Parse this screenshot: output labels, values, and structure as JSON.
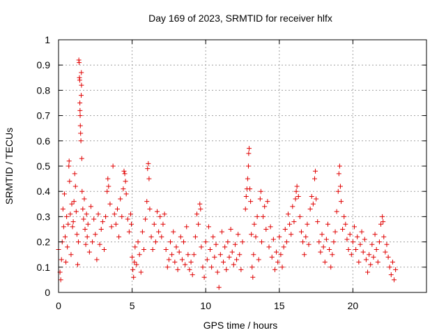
{
  "chart_data": {
    "type": "scatter",
    "title": "Day 169 of 2023, SRMTID for receiver hlfx",
    "xlabel": "GPS time / hours",
    "ylabel": "SRMTID / TECUs",
    "xlim": [
      0,
      25
    ],
    "ylim": [
      0,
      1
    ],
    "xticks": [
      0,
      5,
      10,
      15,
      20
    ],
    "xtick_labels": [
      "0",
      "5",
      "10",
      "15",
      "20"
    ],
    "yticks": [
      0,
      0.1,
      0.2,
      0.3,
      0.4,
      0.5,
      0.6,
      0.7,
      0.8,
      0.9,
      1
    ],
    "ytick_labels": [
      "0",
      "0.1",
      "0.2",
      "0.3",
      "0.4",
      "0.5",
      "0.6",
      "0.7",
      "0.8",
      "0.9",
      "1"
    ],
    "grid": true,
    "marker": "+",
    "color": "#e00000",
    "series": [
      {
        "name": "SRMTID",
        "points": [
          [
            0.0,
            0.17
          ],
          [
            0.1,
            0.08
          ],
          [
            0.15,
            0.05
          ],
          [
            0.2,
            0.13
          ],
          [
            0.25,
            0.2
          ],
          [
            0.3,
            0.33
          ],
          [
            0.35,
            0.26
          ],
          [
            0.4,
            0.39
          ],
          [
            0.45,
            0.22
          ],
          [
            0.5,
            0.12
          ],
          [
            0.55,
            0.3
          ],
          [
            0.6,
            0.18
          ],
          [
            0.65,
            0.27
          ],
          [
            0.7,
            0.5
          ],
          [
            0.72,
            0.52
          ],
          [
            0.75,
            0.44
          ],
          [
            0.8,
            0.31
          ],
          [
            0.85,
            0.15
          ],
          [
            0.9,
            0.35
          ],
          [
            0.95,
            0.26
          ],
          [
            1.0,
            0.28
          ],
          [
            1.05,
            0.36
          ],
          [
            1.1,
            0.47
          ],
          [
            1.15,
            0.42
          ],
          [
            1.2,
            0.32
          ],
          [
            1.25,
            0.23
          ],
          [
            1.3,
            0.11
          ],
          [
            1.35,
            0.2
          ],
          [
            1.38,
            0.92
          ],
          [
            1.4,
            0.91
          ],
          [
            1.42,
            0.85
          ],
          [
            1.44,
            0.84
          ],
          [
            1.45,
            0.75
          ],
          [
            1.46,
            0.72
          ],
          [
            1.47,
            0.7
          ],
          [
            1.48,
            0.66
          ],
          [
            1.5,
            0.63
          ],
          [
            1.52,
            0.6
          ],
          [
            1.54,
            0.78
          ],
          [
            1.55,
            0.87
          ],
          [
            1.56,
            0.82
          ],
          [
            1.58,
            0.53
          ],
          [
            1.6,
            0.4
          ],
          [
            1.65,
            0.33
          ],
          [
            1.7,
            0.29
          ],
          [
            1.75,
            0.37
          ],
          [
            1.8,
            0.25
          ],
          [
            1.85,
            0.19
          ],
          [
            1.9,
            0.31
          ],
          [
            1.95,
            0.22
          ],
          [
            2.0,
            0.27
          ],
          [
            2.1,
            0.16
          ],
          [
            2.2,
            0.34
          ],
          [
            2.3,
            0.2
          ],
          [
            2.4,
            0.29
          ],
          [
            2.5,
            0.23
          ],
          [
            2.6,
            0.13
          ],
          [
            2.7,
            0.31
          ],
          [
            2.8,
            0.19
          ],
          [
            2.9,
            0.25
          ],
          [
            3.0,
            0.28
          ],
          [
            3.1,
            0.17
          ],
          [
            3.2,
            0.3
          ],
          [
            3.3,
            0.4
          ],
          [
            3.35,
            0.45
          ],
          [
            3.4,
            0.42
          ],
          [
            3.5,
            0.35
          ],
          [
            3.6,
            0.26
          ],
          [
            3.7,
            0.5
          ],
          [
            3.8,
            0.31
          ],
          [
            3.9,
            0.27
          ],
          [
            4.0,
            0.33
          ],
          [
            4.1,
            0.22
          ],
          [
            4.2,
            0.37
          ],
          [
            4.3,
            0.3
          ],
          [
            4.4,
            0.41
          ],
          [
            4.45,
            0.48
          ],
          [
            4.5,
            0.47
          ],
          [
            4.55,
            0.44
          ],
          [
            4.6,
            0.39
          ],
          [
            4.7,
            0.29
          ],
          [
            4.8,
            0.24
          ],
          [
            4.9,
            0.31
          ],
          [
            4.95,
            0.27
          ],
          [
            5.0,
            0.14
          ],
          [
            5.05,
            0.09
          ],
          [
            5.1,
            0.06
          ],
          [
            5.15,
            0.12
          ],
          [
            5.2,
            0.18
          ],
          [
            5.3,
            0.11
          ],
          [
            5.4,
            0.2
          ],
          [
            5.5,
            0.15
          ],
          [
            5.6,
            0.08
          ],
          [
            5.7,
            0.24
          ],
          [
            5.8,
            0.17
          ],
          [
            5.9,
            0.29
          ],
          [
            6.0,
            0.36
          ],
          [
            6.05,
            0.49
          ],
          [
            6.1,
            0.51
          ],
          [
            6.15,
            0.45
          ],
          [
            6.2,
            0.33
          ],
          [
            6.3,
            0.22
          ],
          [
            6.4,
            0.17
          ],
          [
            6.5,
            0.27
          ],
          [
            6.6,
            0.2
          ],
          [
            6.7,
            0.32
          ],
          [
            6.8,
            0.24
          ],
          [
            6.9,
            0.3
          ],
          [
            7.0,
            0.22
          ],
          [
            7.1,
            0.27
          ],
          [
            7.2,
            0.31
          ],
          [
            7.3,
            0.17
          ],
          [
            7.4,
            0.1
          ],
          [
            7.5,
            0.13
          ],
          [
            7.6,
            0.2
          ],
          [
            7.7,
            0.15
          ],
          [
            7.8,
            0.24
          ],
          [
            7.9,
            0.12
          ],
          [
            8.0,
            0.18
          ],
          [
            8.1,
            0.09
          ],
          [
            8.2,
            0.16
          ],
          [
            8.3,
            0.22
          ],
          [
            8.4,
            0.13
          ],
          [
            8.5,
            0.2
          ],
          [
            8.6,
            0.11
          ],
          [
            8.7,
            0.26
          ],
          [
            8.8,
            0.15
          ],
          [
            8.9,
            0.09
          ],
          [
            9.0,
            0.12
          ],
          [
            9.1,
            0.07
          ],
          [
            9.2,
            0.15
          ],
          [
            9.3,
            0.22
          ],
          [
            9.4,
            0.31
          ],
          [
            9.5,
            0.27
          ],
          [
            9.6,
            0.35
          ],
          [
            9.65,
            0.33
          ],
          [
            9.7,
            0.18
          ],
          [
            9.8,
            0.1
          ],
          [
            9.9,
            0.06
          ],
          [
            10.0,
            0.2
          ],
          [
            10.1,
            0.13
          ],
          [
            10.2,
            0.26
          ],
          [
            10.3,
            0.17
          ],
          [
            10.4,
            0.1
          ],
          [
            10.5,
            0.22
          ],
          [
            10.6,
            0.14
          ],
          [
            10.7,
            0.19
          ],
          [
            10.8,
            0.08
          ],
          [
            10.9,
            0.02
          ],
          [
            11.0,
            0.15
          ],
          [
            11.1,
            0.24
          ],
          [
            11.2,
            0.12
          ],
          [
            11.3,
            0.18
          ],
          [
            11.4,
            0.09
          ],
          [
            11.5,
            0.2
          ],
          [
            11.6,
            0.14
          ],
          [
            11.7,
            0.25
          ],
          [
            11.8,
            0.16
          ],
          [
            11.9,
            0.11
          ],
          [
            12.0,
            0.19
          ],
          [
            12.1,
            0.13
          ],
          [
            12.2,
            0.23
          ],
          [
            12.3,
            0.15
          ],
          [
            12.4,
            0.09
          ],
          [
            12.5,
            0.2
          ],
          [
            12.7,
            0.33
          ],
          [
            12.75,
            0.38
          ],
          [
            12.8,
            0.41
          ],
          [
            12.85,
            0.45
          ],
          [
            12.9,
            0.5
          ],
          [
            12.92,
            0.55
          ],
          [
            12.95,
            0.57
          ],
          [
            13.0,
            0.41
          ],
          [
            13.05,
            0.36
          ],
          [
            13.1,
            0.23
          ],
          [
            13.15,
            0.1
          ],
          [
            13.2,
            0.06
          ],
          [
            13.25,
            0.15
          ],
          [
            13.3,
            0.27
          ],
          [
            13.4,
            0.22
          ],
          [
            13.5,
            0.3
          ],
          [
            13.6,
            0.13
          ],
          [
            13.7,
            0.37
          ],
          [
            13.75,
            0.4
          ],
          [
            13.8,
            0.2
          ],
          [
            13.9,
            0.3
          ],
          [
            14.0,
            0.34
          ],
          [
            14.1,
            0.25
          ],
          [
            14.2,
            0.36
          ],
          [
            14.3,
            0.18
          ],
          [
            14.4,
            0.26
          ],
          [
            14.5,
            0.14
          ],
          [
            14.6,
            0.21
          ],
          [
            14.7,
            0.09
          ],
          [
            14.8,
            0.16
          ],
          [
            14.9,
            0.12
          ],
          [
            15.0,
            0.22
          ],
          [
            15.1,
            0.15
          ],
          [
            15.2,
            0.1
          ],
          [
            15.3,
            0.18
          ],
          [
            15.4,
            0.25
          ],
          [
            15.5,
            0.2
          ],
          [
            15.6,
            0.31
          ],
          [
            15.7,
            0.27
          ],
          [
            15.8,
            0.23
          ],
          [
            15.9,
            0.34
          ],
          [
            16.0,
            0.28
          ],
          [
            16.1,
            0.37
          ],
          [
            16.15,
            0.4
          ],
          [
            16.2,
            0.42
          ],
          [
            16.3,
            0.38
          ],
          [
            16.4,
            0.3
          ],
          [
            16.5,
            0.24
          ],
          [
            16.6,
            0.2
          ],
          [
            16.7,
            0.15
          ],
          [
            16.8,
            0.22
          ],
          [
            16.9,
            0.27
          ],
          [
            17.0,
            0.19
          ],
          [
            17.1,
            0.33
          ],
          [
            17.2,
            0.38
          ],
          [
            17.3,
            0.35
          ],
          [
            17.4,
            0.45
          ],
          [
            17.45,
            0.48
          ],
          [
            17.5,
            0.37
          ],
          [
            17.6,
            0.28
          ],
          [
            17.7,
            0.2
          ],
          [
            17.8,
            0.16
          ],
          [
            17.9,
            0.23
          ],
          [
            18.0,
            0.18
          ],
          [
            18.1,
            0.12
          ],
          [
            18.2,
            0.21
          ],
          [
            18.3,
            0.27
          ],
          [
            18.4,
            0.17
          ],
          [
            18.5,
            0.1
          ],
          [
            18.6,
            0.15
          ],
          [
            18.7,
            0.2
          ],
          [
            18.8,
            0.24
          ],
          [
            18.9,
            0.32
          ],
          [
            19.0,
            0.4
          ],
          [
            19.05,
            0.47
          ],
          [
            19.1,
            0.5
          ],
          [
            19.15,
            0.42
          ],
          [
            19.2,
            0.36
          ],
          [
            19.3,
            0.25
          ],
          [
            19.4,
            0.3
          ],
          [
            19.5,
            0.27
          ],
          [
            19.6,
            0.21
          ],
          [
            19.7,
            0.17
          ],
          [
            19.8,
            0.23
          ],
          [
            19.9,
            0.15
          ],
          [
            20.0,
            0.2
          ],
          [
            20.1,
            0.26
          ],
          [
            20.2,
            0.17
          ],
          [
            20.3,
            0.22
          ],
          [
            20.4,
            0.12
          ],
          [
            20.5,
            0.19
          ],
          [
            20.6,
            0.24
          ],
          [
            20.7,
            0.16
          ],
          [
            20.8,
            0.21
          ],
          [
            20.9,
            0.13
          ],
          [
            21.0,
            0.08
          ],
          [
            21.1,
            0.15
          ],
          [
            21.2,
            0.11
          ],
          [
            21.3,
            0.19
          ],
          [
            21.4,
            0.14
          ],
          [
            21.5,
            0.23
          ],
          [
            21.6,
            0.17
          ],
          [
            21.7,
            0.12
          ],
          [
            21.8,
            0.2
          ],
          [
            21.9,
            0.27
          ],
          [
            22.0,
            0.3
          ],
          [
            22.05,
            0.28
          ],
          [
            22.1,
            0.22
          ],
          [
            22.2,
            0.16
          ],
          [
            22.3,
            0.19
          ],
          [
            22.4,
            0.14
          ],
          [
            22.5,
            0.1
          ],
          [
            22.6,
            0.07
          ],
          [
            22.7,
            0.12
          ],
          [
            22.8,
            0.05
          ],
          [
            22.9,
            0.09
          ]
        ]
      }
    ]
  }
}
